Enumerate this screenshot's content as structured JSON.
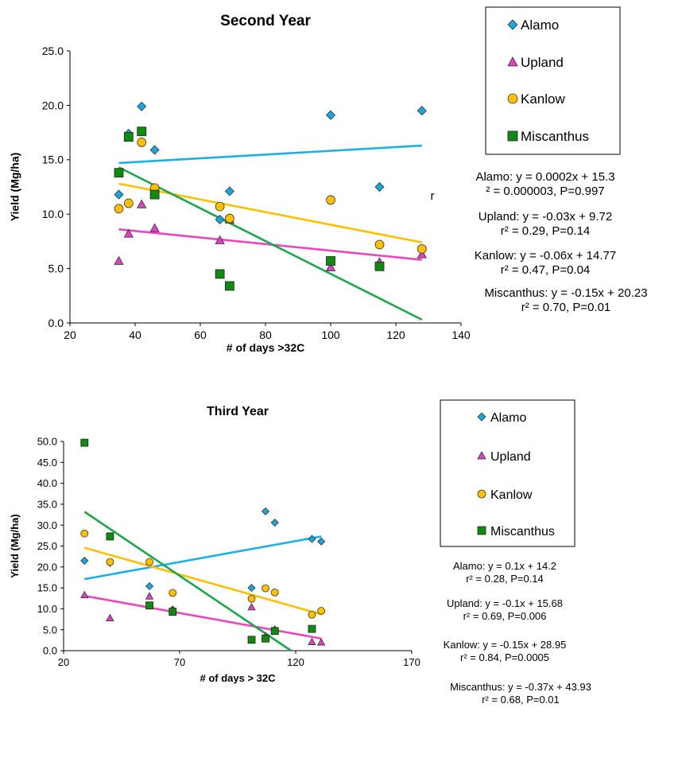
{
  "colors": {
    "Alamo": "#1aa7e0",
    "Upland": "#e040c8",
    "Kanlow": "#ffc000",
    "Miscanthus": "#108a10",
    "Alamo_line": "#1ab0e8",
    "Upland_line": "#ee44c0",
    "Kanlow_line": "#ffbf00",
    "Miscanthus_line": "#1aa84a"
  },
  "markers": {
    "Alamo": "diamond",
    "Upland": "triangle",
    "Kanlow": "circle",
    "Miscanthus": "square"
  },
  "chart_data": [
    {
      "type": "scatter",
      "title": "Second Year",
      "xlabel": "# of days >32C",
      "ylabel": "Yield (Mg/ha)",
      "xlim": [
        20,
        140
      ],
      "ylim": [
        0,
        25
      ],
      "xticks": [
        "20",
        "40",
        "60",
        "80",
        "100",
        "120",
        "140"
      ],
      "yticks": [
        "0.0",
        "5.0",
        "10.0",
        "15.0",
        "20.0",
        "25.0"
      ],
      "legend_position": "top-right",
      "series": [
        {
          "name": "Alamo",
          "points": [
            [
              35,
              11.8
            ],
            [
              38,
              17.4
            ],
            [
              42,
              19.9
            ],
            [
              46,
              15.9
            ],
            [
              66,
              9.5
            ],
            [
              69,
              12.1
            ],
            [
              100,
              19.1
            ],
            [
              115,
              12.5
            ],
            [
              128,
              19.5
            ]
          ],
          "trend": [
            [
              35,
              14.7
            ],
            [
              128,
              16.3
            ]
          ]
        },
        {
          "name": "Upland",
          "points": [
            [
              35,
              5.7
            ],
            [
              38,
              8.2
            ],
            [
              42,
              10.9
            ],
            [
              46,
              8.7
            ],
            [
              66,
              7.6
            ],
            [
              69,
              9.5
            ],
            [
              100,
              5.1
            ],
            [
              115,
              5.6
            ],
            [
              128,
              6.3
            ]
          ],
          "trend": [
            [
              35,
              8.6
            ],
            [
              128,
              5.8
            ]
          ]
        },
        {
          "name": "Kanlow",
          "points": [
            [
              35,
              10.5
            ],
            [
              38,
              11.0
            ],
            [
              42,
              16.6
            ],
            [
              46,
              12.4
            ],
            [
              66,
              10.7
            ],
            [
              69,
              9.6
            ],
            [
              100,
              11.3
            ],
            [
              115,
              7.2
            ],
            [
              128,
              6.8
            ]
          ],
          "trend": [
            [
              35,
              12.8
            ],
            [
              128,
              7.4
            ]
          ]
        },
        {
          "name": "Miscanthus",
          "points": [
            [
              35,
              13.8
            ],
            [
              38,
              17.1
            ],
            [
              42,
              17.6
            ],
            [
              46,
              11.8
            ],
            [
              66,
              4.5
            ],
            [
              69,
              3.4
            ],
            [
              100,
              5.7
            ],
            [
              115,
              5.2
            ]
          ],
          "trend": [
            [
              35,
              14.3
            ],
            [
              128,
              0.3
            ]
          ]
        }
      ],
      "equations": [
        [
          "Alamo: y = 0.0002x + 15.3",
          "² = 0.000003, P=0.997"
        ],
        [
          "Upland: y = -0.03x + 9.72",
          "r² = 0.29, P=0.14"
        ],
        [
          "Kanlow: y = -0.06x + 14.77",
          "r² = 0.47, P=0.04"
        ],
        [
          "Miscanthus: y = -0.15x + 20.23",
          "r² = 0.70, P=0.01"
        ]
      ],
      "stray_label": "r"
    },
    {
      "type": "scatter",
      "title": "Third Year",
      "xlabel": "# of days > 32C",
      "ylabel": "Yield (Mg/ha)",
      "xlim": [
        20,
        170
      ],
      "ylim": [
        0,
        50
      ],
      "xticks": [
        "20",
        "70",
        "120",
        "170"
      ],
      "yticks": [
        "0.0",
        "5.0",
        "10.0",
        "15.0",
        "20.0",
        "25.0",
        "30.0",
        "35.0",
        "40.0",
        "45.0",
        "50.0"
      ],
      "legend_position": "top-right",
      "series": [
        {
          "name": "Alamo",
          "points": [
            [
              29,
              21.5
            ],
            [
              40,
              21.0
            ],
            [
              57,
              15.4
            ],
            [
              67,
              9.8
            ],
            [
              101,
              15.0
            ],
            [
              107,
              33.3
            ],
            [
              111,
              30.6
            ],
            [
              127,
              26.7
            ],
            [
              131,
              26.1
            ]
          ],
          "trend": [
            [
              29,
              17.1
            ],
            [
              131,
              27.3
            ]
          ]
        },
        {
          "name": "Upland",
          "points": [
            [
              29,
              13.3
            ],
            [
              40,
              7.8
            ],
            [
              57,
              13.0
            ],
            [
              67,
              9.8
            ],
            [
              101,
              10.4
            ],
            [
              107,
              3.5
            ],
            [
              111,
              5.1
            ],
            [
              127,
              2.1
            ],
            [
              131,
              2.0
            ]
          ],
          "trend": [
            [
              29,
              13.1
            ],
            [
              131,
              2.9
            ]
          ]
        },
        {
          "name": "Kanlow",
          "points": [
            [
              29,
              28.0
            ],
            [
              40,
              21.2
            ],
            [
              57,
              21.2
            ],
            [
              67,
              13.8
            ],
            [
              101,
              12.4
            ],
            [
              107,
              14.9
            ],
            [
              111,
              13.9
            ],
            [
              127,
              8.6
            ],
            [
              131,
              9.5
            ]
          ],
          "trend": [
            [
              29,
              24.6
            ],
            [
              131,
              8.7
            ]
          ]
        },
        {
          "name": "Miscanthus",
          "points": [
            [
              29,
              49.7
            ],
            [
              40,
              27.3
            ],
            [
              57,
              10.8
            ],
            [
              67,
              9.3
            ],
            [
              101,
              2.6
            ],
            [
              107,
              2.9
            ],
            [
              111,
              4.7
            ],
            [
              127,
              5.2
            ]
          ],
          "trend": [
            [
              29,
              33.2
            ],
            [
              118,
              0.0
            ]
          ]
        }
      ],
      "equations": [
        [
          "Alamo: y = 0.1x + 14.2",
          "r² = 0.28, P=0.14"
        ],
        [
          "Upland: y = -0.1x + 15.68",
          "r² = 0.69, P=0.006"
        ],
        [
          "Kanlow: y = -0.15x + 28.95",
          "r² = 0.84, P=0.0005"
        ],
        [
          "Miscanthus: y = -0.37x + 43.93",
          "r² = 0.68, P=0.01"
        ]
      ]
    }
  ]
}
